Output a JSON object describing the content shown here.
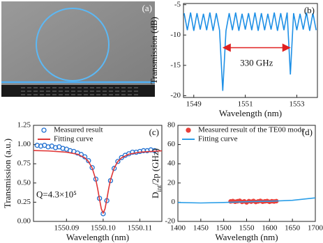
{
  "chart_data": [
    {
      "type": "image",
      "label": "(a)"
    },
    {
      "type": "line",
      "label": "(b)",
      "xlabel": "Wavelength (nm)",
      "ylabel": "Transmission (dB)",
      "xlim": [
        1548.6,
        1553.8
      ],
      "xticks": [
        1549,
        1551,
        1553
      ],
      "ylim": [
        -20.3,
        -4.8
      ],
      "yticks": [
        -5,
        -10,
        -15,
        -20
      ],
      "annotation": "330 GHz",
      "annotation_color": "#e02020",
      "series": [
        {
          "mode": "line",
          "color": "#1e90e6",
          "x": [
            1548.625,
            1548.75,
            1548.875,
            1549,
            1549.125,
            1549.25,
            1549.375,
            1549.5,
            1549.625,
            1549.75,
            1549.875,
            1550,
            1550.125,
            1550.25,
            1550.375,
            1550.5,
            1550.625,
            1550.75,
            1550.875,
            1551,
            1551.125,
            1551.25,
            1551.375,
            1551.5,
            1551.625,
            1551.75,
            1551.875,
            1552,
            1552.125,
            1552.25,
            1552.375,
            1552.5,
            1552.625,
            1552.75,
            1552.875,
            1553,
            1553.125,
            1553.25,
            1553.375,
            1553.5,
            1553.625,
            1553.75
          ],
          "values": [
            -6.4,
            -9.2,
            -6.3,
            -9.3,
            -6.4,
            -9.1,
            -6.5,
            -9.2,
            -6.3,
            -9.3,
            -6.4,
            -9.2,
            -19.2,
            -9.3,
            -6.4,
            -9.2,
            -6.3,
            -9.3,
            -6.5,
            -9.1,
            -6.4,
            -9.2,
            -6.3,
            -9.3,
            -6.4,
            -9.2,
            -6.5,
            -9.1,
            -6.3,
            -9.3,
            -6.4,
            -9.2,
            -6.3,
            -16.5,
            -6.4,
            -9.2,
            -6.5,
            -9.1,
            -6.3,
            -9.3,
            -6.4,
            -9.2
          ]
        }
      ]
    },
    {
      "type": "line",
      "label": "(c)",
      "xlabel": "Wavelength (nm)",
      "ylabel": "Transmission (a.u.)",
      "xlim": [
        1550.081,
        1550.116
      ],
      "xticks": [
        {
          "value": 1550.09,
          "label": "1550.09"
        },
        {
          "value": 1550.1,
          "label": "1550.10"
        },
        {
          "value": 1550.11,
          "label": "1550.11"
        }
      ],
      "ylim": [
        0,
        1.25
      ],
      "yticks": [
        {
          "value": 0,
          "label": "0.00"
        },
        {
          "value": 0.25,
          "label": "0.25"
        },
        {
          "value": 0.5,
          "label": "0.50"
        },
        {
          "value": 0.75,
          "label": "0.75"
        },
        {
          "value": 1,
          "label": "1.00"
        },
        {
          "value": 1.25,
          "label": "1.25"
        }
      ],
      "annotation": "Q=4.3×10⁵",
      "legend": "upper left",
      "series": [
        {
          "name": "Measured result",
          "mode": "markers",
          "marker": "open",
          "color": "#1f6fd0",
          "x": [
            1550.082,
            1550.083,
            1550.084,
            1550.085,
            1550.086,
            1550.087,
            1550.088,
            1550.089,
            1550.09,
            1550.091,
            1550.092,
            1550.093,
            1550.094,
            1550.095,
            1550.096,
            1550.097,
            1550.098,
            1550.099,
            1550.1,
            1550.101,
            1550.102,
            1550.103,
            1550.104,
            1550.105,
            1550.106,
            1550.107,
            1550.108,
            1550.109,
            1550.11,
            1550.111,
            1550.112,
            1550.113,
            1550.114
          ],
          "values": [
            0.99,
            0.98,
            0.99,
            0.97,
            0.98,
            0.96,
            0.97,
            0.95,
            0.94,
            0.92,
            0.91,
            0.89,
            0.87,
            0.84,
            0.79,
            0.7,
            0.55,
            0.3,
            0.1,
            0.27,
            0.53,
            0.69,
            0.78,
            0.83,
            0.86,
            0.88,
            0.9,
            0.9,
            0.91,
            0.92,
            0.92,
            0.93,
            0.92
          ]
        },
        {
          "name": "Fitting curve",
          "mode": "line",
          "color": "#e03535",
          "x": [
            1550.081,
            1550.085,
            1550.09,
            1550.093,
            1550.095,
            1550.096,
            1550.097,
            1550.098,
            1550.0985,
            1550.099,
            1550.0995,
            1550.1,
            1550.1005,
            1550.101,
            1550.1015,
            1550.102,
            1550.103,
            1550.104,
            1550.105,
            1550.107,
            1550.11,
            1550.116
          ],
          "values": [
            0.922,
            0.917,
            0.901,
            0.874,
            0.827,
            0.779,
            0.695,
            0.541,
            0.425,
            0.288,
            0.163,
            0.11,
            0.163,
            0.288,
            0.425,
            0.541,
            0.695,
            0.779,
            0.827,
            0.874,
            0.901,
            0.919
          ]
        }
      ]
    },
    {
      "type": "line",
      "label": "(d)",
      "xlabel": "Wavelength (nm)",
      "ylabel": {
        "main": "D",
        "sub": "int",
        "rest": "/2p (GHz)"
      },
      "xlim": [
        1400,
        1700
      ],
      "xticks": [
        1400,
        1450,
        1500,
        1550,
        1600,
        1650,
        1700
      ],
      "ylim": [
        -20,
        80
      ],
      "yticks": [
        -20,
        0,
        20,
        40,
        60,
        80
      ],
      "legend": "upper left",
      "series": [
        {
          "name": "Measured result of the TE00 mode",
          "mode": "markers",
          "marker": "filled",
          "color": "#e8403a",
          "x": [
            1515,
            1520,
            1525,
            1530,
            1535,
            1540,
            1545,
            1550,
            1555,
            1560,
            1565,
            1570,
            1575,
            1580,
            1585,
            1590,
            1595,
            1600,
            1605,
            1610,
            1615
          ],
          "values": [
            0.8,
            1.2,
            0.5,
            1.0,
            1.5,
            0.3,
            0.9,
            -0.2,
            1.1,
            0.6,
            1.3,
            0.2,
            0.8,
            1.4,
            0.5,
            0.9,
            1.2,
            0.4,
            1.0,
            0.7,
            1.1
          ]
        },
        {
          "name": "Fitting curve",
          "mode": "line",
          "color": "#2a9ee8",
          "x": [
            1400,
            1450,
            1500,
            1550,
            1600,
            1650,
            1700
          ],
          "values": [
            -0.3,
            -0.8,
            -0.3,
            0.5,
            1.0,
            2.0,
            4.5
          ]
        }
      ]
    }
  ]
}
